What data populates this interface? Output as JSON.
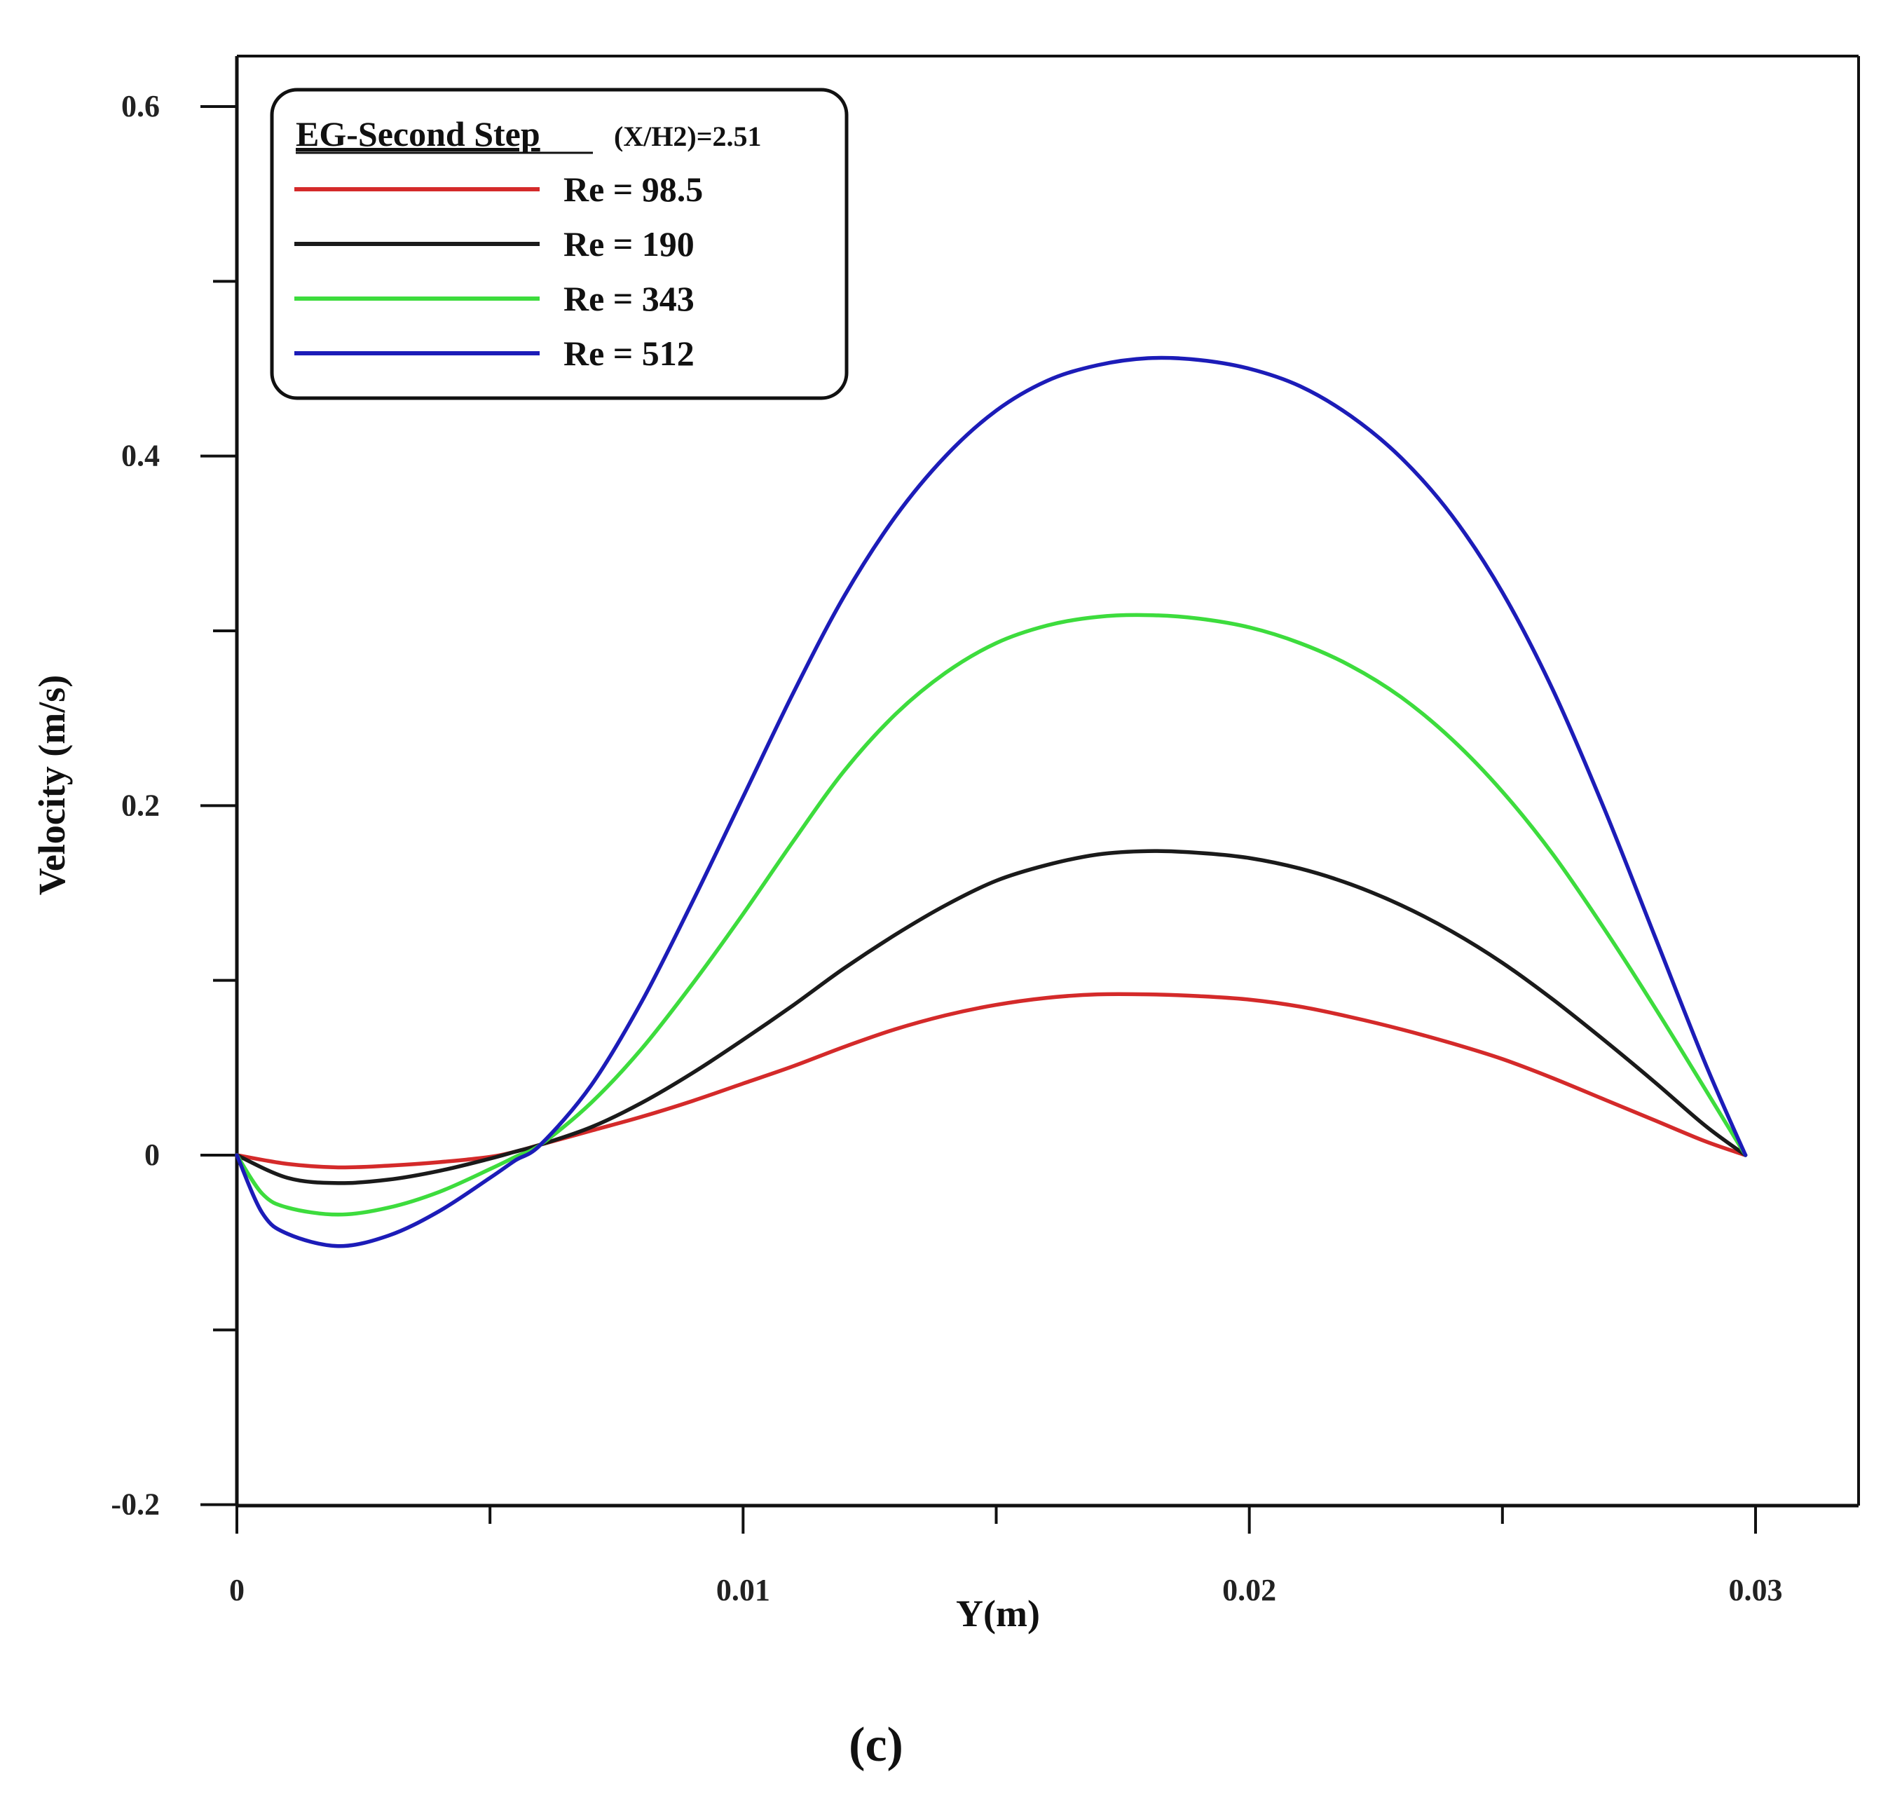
{
  "chart_data": {
    "type": "line",
    "title": "",
    "xlabel": "Y(m)",
    "ylabel": "Velocity (m/s)",
    "xlim": [
      0,
      0.0318
    ],
    "ylim": [
      -0.2,
      0.63
    ],
    "x_ticks": [
      {
        "value": 0,
        "label": "0"
      },
      {
        "value": 0.01,
        "label": "0.01"
      },
      {
        "value": 0.02,
        "label": "0.02"
      },
      {
        "value": 0.03,
        "label": "0.03"
      }
    ],
    "x_minor_ticks": [
      0.005,
      0.015,
      0.025
    ],
    "y_ticks": [
      {
        "value": -0.2,
        "label": "-0.2"
      },
      {
        "value": 0,
        "label": "0"
      },
      {
        "value": 0.2,
        "label": "0.2"
      },
      {
        "value": 0.4,
        "label": "0.4"
      },
      {
        "value": 0.6,
        "label": "0.6"
      }
    ],
    "y_minor_ticks": [
      -0.1,
      0.1,
      0.3,
      0.5
    ],
    "legend": {
      "title_main": "EG-Second Step",
      "title_extra": "(X/H2)=2.51",
      "placement": "top-left"
    },
    "series": [
      {
        "name": "Re = 98.5",
        "color": "#d42a2a",
        "x": [
          0,
          0.001,
          0.002,
          0.003,
          0.004,
          0.005,
          0.0055,
          0.006,
          0.007,
          0.008,
          0.009,
          0.01,
          0.011,
          0.012,
          0.013,
          0.014,
          0.015,
          0.016,
          0.017,
          0.018,
          0.019,
          0.02,
          0.021,
          0.022,
          0.023,
          0.024,
          0.025,
          0.026,
          0.027,
          0.028,
          0.029,
          0.0298
        ],
        "values": [
          0,
          -0.005,
          -0.007,
          -0.006,
          -0.004,
          -0.001,
          0.002,
          0.006,
          0.014,
          0.022,
          0.031,
          0.041,
          0.051,
          0.062,
          0.072,
          0.08,
          0.086,
          0.09,
          0.092,
          0.092,
          0.091,
          0.089,
          0.085,
          0.079,
          0.072,
          0.064,
          0.055,
          0.044,
          0.032,
          0.02,
          0.008,
          0
        ]
      },
      {
        "name": "Re = 190",
        "color": "#1a1a1a",
        "x": [
          0,
          0.001,
          0.002,
          0.003,
          0.004,
          0.005,
          0.0055,
          0.006,
          0.007,
          0.008,
          0.009,
          0.01,
          0.011,
          0.012,
          0.013,
          0.014,
          0.015,
          0.016,
          0.017,
          0.018,
          0.019,
          0.02,
          0.021,
          0.022,
          0.023,
          0.024,
          0.025,
          0.026,
          0.027,
          0.028,
          0.029,
          0.0298
        ],
        "values": [
          0,
          -0.013,
          -0.016,
          -0.014,
          -0.009,
          -0.002,
          0.002,
          0.006,
          0.016,
          0.03,
          0.047,
          0.066,
          0.086,
          0.107,
          0.126,
          0.143,
          0.157,
          0.166,
          0.172,
          0.174,
          0.173,
          0.17,
          0.164,
          0.155,
          0.143,
          0.128,
          0.11,
          0.089,
          0.066,
          0.042,
          0.017,
          0
        ]
      },
      {
        "name": "Re = 343",
        "color": "#3ddc3d",
        "x": [
          0,
          0.0005,
          0.001,
          0.002,
          0.003,
          0.004,
          0.005,
          0.0055,
          0.006,
          0.007,
          0.008,
          0.009,
          0.01,
          0.011,
          0.012,
          0.013,
          0.014,
          0.015,
          0.016,
          0.017,
          0.018,
          0.019,
          0.02,
          0.021,
          0.022,
          0.023,
          0.024,
          0.025,
          0.026,
          0.027,
          0.028,
          0.029,
          0.0298
        ],
        "values": [
          0,
          -0.022,
          -0.03,
          -0.034,
          -0.03,
          -0.021,
          -0.008,
          -0.001,
          0.006,
          0.03,
          0.061,
          0.098,
          0.138,
          0.18,
          0.22,
          0.252,
          0.276,
          0.293,
          0.303,
          0.308,
          0.309,
          0.307,
          0.302,
          0.293,
          0.28,
          0.262,
          0.238,
          0.208,
          0.172,
          0.13,
          0.085,
          0.038,
          0
        ]
      },
      {
        "name": "Re = 512",
        "color": "#1c1cb8",
        "x": [
          0,
          0.0005,
          0.001,
          0.002,
          0.003,
          0.004,
          0.005,
          0.0055,
          0.006,
          0.007,
          0.008,
          0.009,
          0.01,
          0.011,
          0.012,
          0.013,
          0.014,
          0.015,
          0.016,
          0.017,
          0.018,
          0.019,
          0.02,
          0.021,
          0.022,
          0.023,
          0.024,
          0.025,
          0.026,
          0.027,
          0.028,
          0.029,
          0.0298
        ],
        "values": [
          0,
          -0.033,
          -0.045,
          -0.052,
          -0.046,
          -0.032,
          -0.013,
          -0.003,
          0.006,
          0.04,
          0.088,
          0.145,
          0.205,
          0.265,
          0.32,
          0.365,
          0.4,
          0.426,
          0.443,
          0.452,
          0.456,
          0.455,
          0.45,
          0.44,
          0.423,
          0.399,
          0.366,
          0.322,
          0.266,
          0.199,
          0.126,
          0.053,
          0
        ]
      }
    ]
  },
  "panel_label": "(c)"
}
